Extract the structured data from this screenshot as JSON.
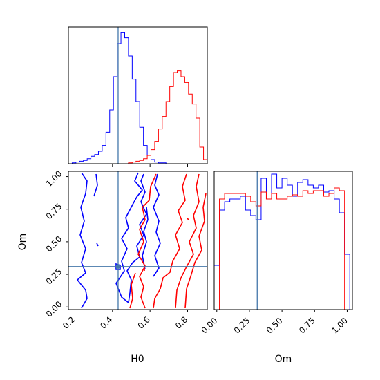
{
  "chart_data": {
    "type": "corner",
    "parameters": [
      "H0",
      "Om"
    ],
    "truth": {
      "H0": 0.43,
      "Om": 0.31
    },
    "truth_color": "#4477aa",
    "series_colors": [
      "#0000ff",
      "#ff0000"
    ],
    "xlabels": {
      "H0": "H0",
      "Om": "Om"
    },
    "ylabels": {
      "Om": "Om"
    },
    "h0_ticks": [
      "0.2",
      "0.4",
      "0.6",
      "0.8"
    ],
    "om_ticks": [
      "0.00",
      "0.25",
      "0.50",
      "0.75",
      "1.00"
    ],
    "h0_range": [
      0.165,
      0.905
    ],
    "om_range": [
      -0.02,
      1.04
    ],
    "h0_hist": {
      "bin_edges": [
        0.165,
        0.185,
        0.205,
        0.225,
        0.245,
        0.265,
        0.285,
        0.305,
        0.325,
        0.345,
        0.365,
        0.385,
        0.405,
        0.425,
        0.445,
        0.465,
        0.485,
        0.505,
        0.525,
        0.545,
        0.565,
        0.585,
        0.605,
        0.625,
        0.645,
        0.665,
        0.685,
        0.705,
        0.725,
        0.745,
        0.765,
        0.785,
        0.805,
        0.825,
        0.845,
        0.865,
        0.885,
        0.905
      ],
      "series": [
        {
          "counts": [
            0,
            1,
            2,
            3,
            4,
            6,
            9,
            11,
            15,
            22,
            38,
            65,
            105,
            145,
            158,
            152,
            130,
            102,
            75,
            44,
            22,
            10,
            5,
            2,
            1,
            1,
            0,
            0,
            0,
            0,
            0,
            0,
            0,
            0,
            0,
            0,
            0
          ]
        },
        {
          "counts": [
            0,
            0,
            0,
            0,
            0,
            0,
            0,
            0,
            0,
            0,
            0,
            0,
            0,
            0,
            0,
            0,
            1,
            2,
            3,
            4,
            6,
            10,
            17,
            27,
            42,
            57,
            75,
            93,
            110,
            112,
            105,
            98,
            84,
            72,
            55,
            20,
            5
          ]
        }
      ]
    },
    "om_hist": {
      "bin_edges": [
        -0.02,
        0.02,
        0.06,
        0.1,
        0.14,
        0.18,
        0.22,
        0.26,
        0.3,
        0.34,
        0.38,
        0.42,
        0.46,
        0.5,
        0.54,
        0.58,
        0.62,
        0.66,
        0.7,
        0.74,
        0.78,
        0.82,
        0.86,
        0.9,
        0.94,
        0.98,
        1.02
      ],
      "series": [
        {
          "counts": [
            32,
            72,
            78,
            80,
            80,
            82,
            72,
            68,
            65,
            95,
            80,
            98,
            88,
            95,
            90,
            82,
            92,
            94,
            90,
            88,
            90,
            85,
            86,
            80,
            70,
            40
          ]
        },
        {
          "counts": [
            0,
            80,
            84,
            84,
            84,
            84,
            82,
            78,
            75,
            85,
            80,
            84,
            80,
            80,
            82,
            83,
            82,
            86,
            84,
            86,
            86,
            82,
            84,
            88,
            86,
            0
          ]
        }
      ]
    }
  }
}
